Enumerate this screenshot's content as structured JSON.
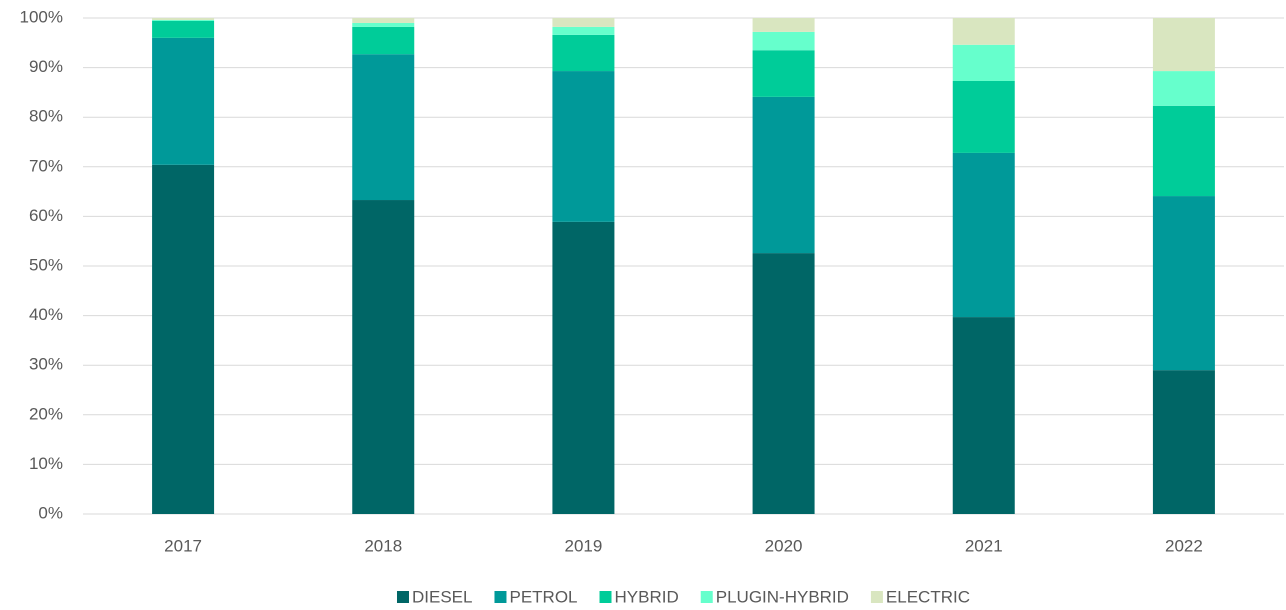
{
  "chart_data": {
    "type": "stacked_bar",
    "categories": [
      "2017",
      "2018",
      "2019",
      "2020",
      "2021",
      "2022"
    ],
    "series": [
      {
        "name": "DIESEL",
        "color": "#006666",
        "values": [
          70.4,
          63.3,
          58.9,
          52.6,
          39.7,
          29.0
        ]
      },
      {
        "name": "PETROL",
        "color": "#009999",
        "values": [
          25.6,
          29.4,
          30.4,
          31.5,
          33.1,
          35.1
        ]
      },
      {
        "name": "HYBRID",
        "color": "#00cc99",
        "values": [
          3.4,
          5.5,
          7.3,
          9.4,
          14.5,
          18.2
        ]
      },
      {
        "name": "PLUGIN-HYBRID",
        "color": "#66ffcc",
        "values": [
          0.2,
          0.8,
          1.6,
          3.7,
          7.3,
          7.0
        ]
      },
      {
        "name": "ELECTRIC",
        "color": "#d9e6c0",
        "values": [
          0.4,
          1.0,
          1.8,
          2.8,
          5.4,
          10.7
        ]
      }
    ],
    "ylim": [
      0,
      100
    ],
    "yticks": [
      {
        "value": 0,
        "label": "0%"
      },
      {
        "value": 10,
        "label": "10%"
      },
      {
        "value": 20,
        "label": "20%"
      },
      {
        "value": 30,
        "label": "30%"
      },
      {
        "value": 40,
        "label": "40%"
      },
      {
        "value": 50,
        "label": "50%"
      },
      {
        "value": 60,
        "label": "60%"
      },
      {
        "value": 70,
        "label": "70%"
      },
      {
        "value": 80,
        "label": "80%"
      },
      {
        "value": 90,
        "label": "90%"
      },
      {
        "value": 100,
        "label": "100%"
      }
    ],
    "grid": true,
    "legend": "bottom"
  }
}
